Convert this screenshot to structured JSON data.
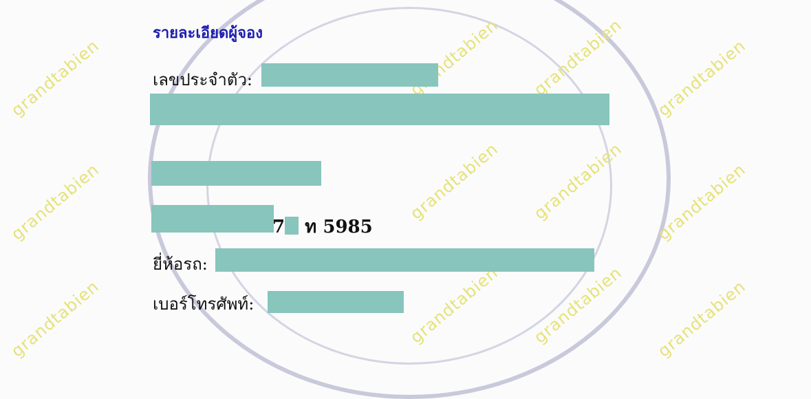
{
  "watermark": "grandtabien",
  "redaction_color": "#87c5bd",
  "title_color": "#1d1db0",
  "section_title": "รายละเอียดผู้จอง",
  "fields": {
    "id_label": "เลขประจำตัว:",
    "plate_prefix": "7",
    "plate_suffix": "ท 5985",
    "brand_label": "ยี่ห้อรถ:",
    "phone_label": "เบอร์โทรศัพท์:"
  }
}
